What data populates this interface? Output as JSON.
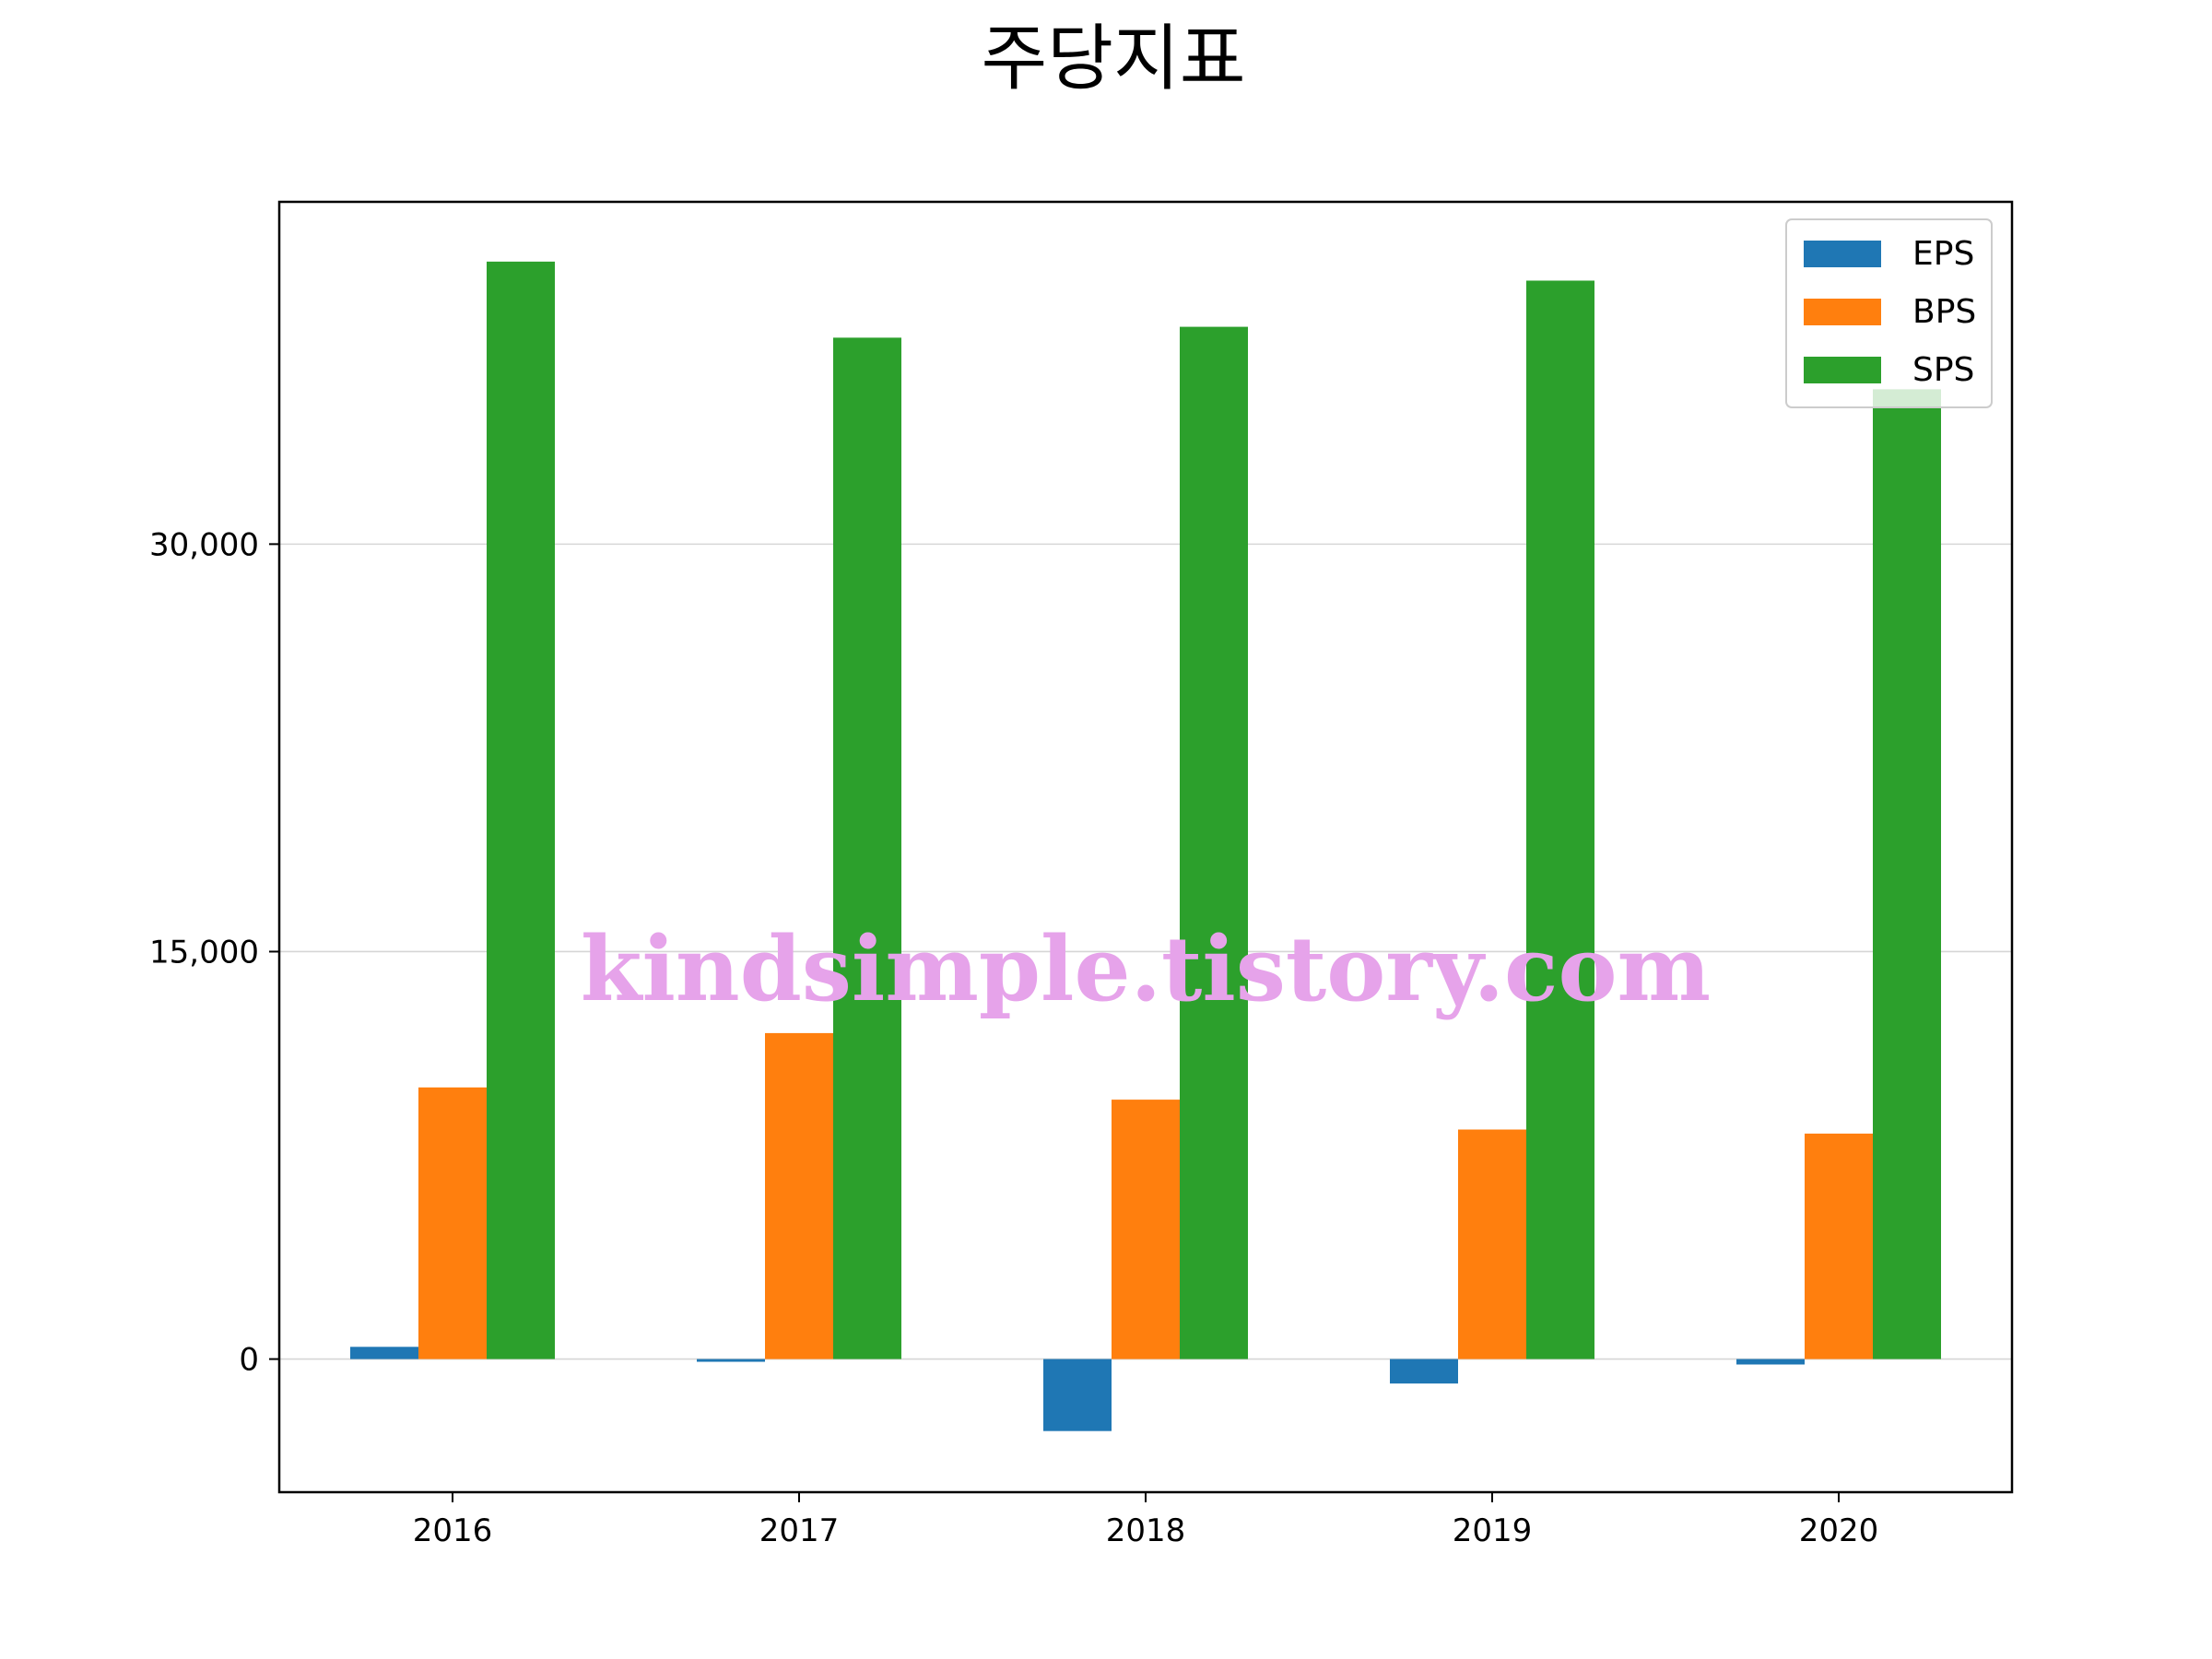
{
  "chart_data": {
    "type": "bar",
    "title": "주당지표",
    "xlabel": "",
    "ylabel": "",
    "categories": [
      "2016",
      "2017",
      "2018",
      "2019",
      "2020"
    ],
    "series": [
      {
        "name": "EPS",
        "color": "#1f77b4",
        "values": [
          450,
          -100,
          -2650,
          -900,
          -200
        ]
      },
      {
        "name": "BPS",
        "color": "#ff7f0e",
        "values": [
          10000,
          12000,
          9550,
          8450,
          8300
        ]
      },
      {
        "name": "SPS",
        "color": "#2ca02c",
        "values": [
          40400,
          37600,
          38000,
          39700,
          35700
        ]
      }
    ],
    "ylim": [
      -4900,
      42600
    ],
    "yticks": [
      0,
      15000,
      30000
    ],
    "ytick_labels": [
      "0",
      "15,000",
      "30,000"
    ],
    "grid": "y",
    "legend_position": "top-right"
  },
  "watermark": "kindsimple.tistory.com"
}
